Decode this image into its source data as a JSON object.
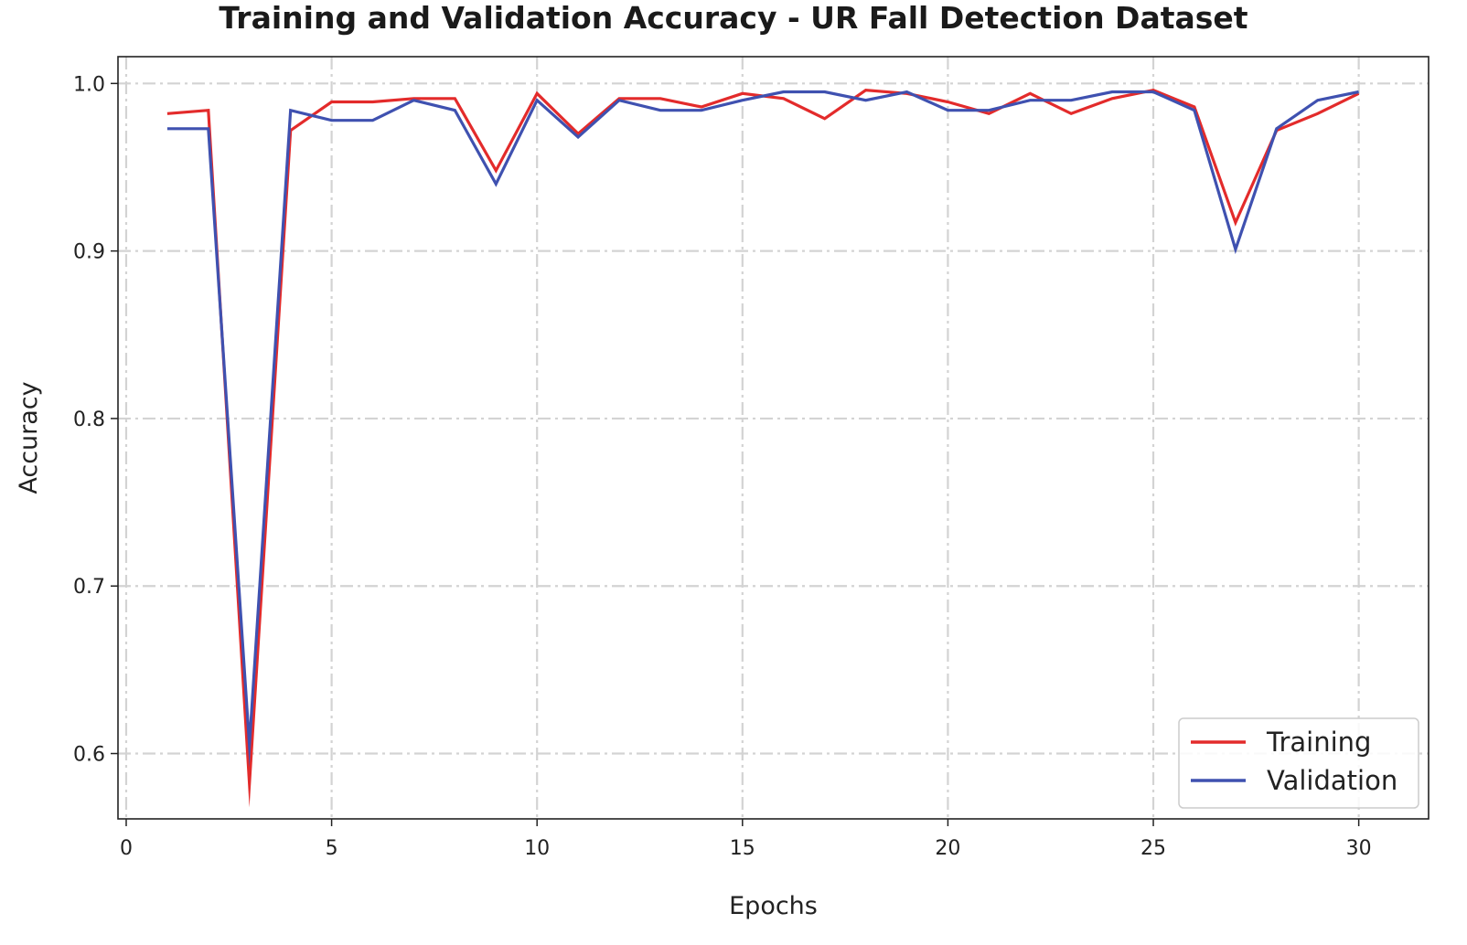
{
  "chart_data": {
    "type": "line",
    "title": "Training and Validation Accuracy - UR Fall Detection Dataset",
    "xlabel": "Epochs",
    "ylabel": "Accuracy",
    "xlim": [
      -0.2,
      31.7
    ],
    "ylim": [
      0.561,
      1.016
    ],
    "xticks": [
      0,
      5,
      10,
      15,
      20,
      25,
      30
    ],
    "xtick_labels": [
      "0",
      "5",
      "10",
      "15",
      "20",
      "25",
      "30"
    ],
    "yticks": [
      0.6,
      0.7,
      0.8,
      0.9,
      1.0
    ],
    "ytick_labels": [
      "0.6",
      "0.7",
      "0.8",
      "0.9",
      "1.0"
    ],
    "grid": true,
    "legend_position": "lower-right",
    "x": [
      1,
      2,
      3,
      4,
      5,
      6,
      7,
      8,
      9,
      10,
      11,
      12,
      13,
      14,
      15,
      16,
      17,
      18,
      19,
      20,
      21,
      22,
      23,
      24,
      25,
      26,
      27,
      28,
      29,
      30
    ],
    "series": [
      {
        "name": "Training",
        "color": "#e32b2b",
        "values": [
          0.982,
          0.984,
          0.582,
          0.972,
          0.989,
          0.989,
          0.991,
          0.991,
          0.948,
          0.994,
          0.97,
          0.991,
          0.991,
          0.986,
          0.994,
          0.991,
          0.979,
          0.996,
          0.994,
          0.989,
          0.982,
          0.994,
          0.982,
          0.991,
          0.996,
          0.986,
          0.917,
          0.972,
          0.982,
          0.994
        ]
      },
      {
        "name": "Validation",
        "color": "#3f51b0",
        "values": [
          0.973,
          0.973,
          0.605,
          0.984,
          0.978,
          0.978,
          0.99,
          0.984,
          0.94,
          0.99,
          0.968,
          0.99,
          0.984,
          0.984,
          0.99,
          0.995,
          0.995,
          0.99,
          0.995,
          0.984,
          0.984,
          0.99,
          0.99,
          0.995,
          0.995,
          0.984,
          0.901,
          0.973,
          0.99,
          0.995
        ]
      }
    ]
  }
}
